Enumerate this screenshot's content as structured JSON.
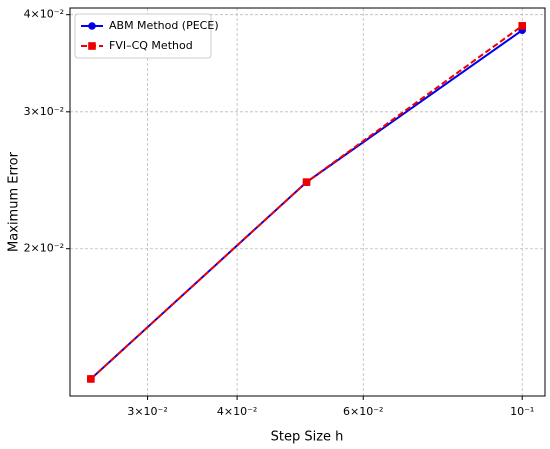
{
  "chart_data": {
    "type": "line",
    "x_label": "Step Size h",
    "y_label": "Maximum Error",
    "x": [
      0.025,
      0.05,
      0.1
    ],
    "series": [
      {
        "name": "ABM Method (PECE)",
        "color": "#0000ee",
        "marker": "circle",
        "dash": false,
        "values": [
          0.0136,
          0.02436,
          0.0382
        ]
      },
      {
        "name": "FVI–CQ Method",
        "color": "#ee0000",
        "marker": "square",
        "dash": true,
        "values": [
          0.0136,
          0.02436,
          0.0387
        ]
      }
    ],
    "xlog": true,
    "ylog": true,
    "xlim": [
      0.02338,
      0.1076
    ],
    "ylim": [
      0.01293,
      0.0408
    ],
    "xticks": [
      {
        "value": 0.03,
        "label": "3×10⁻²"
      },
      {
        "value": 0.04,
        "label": "4×10⁻²"
      },
      {
        "value": 0.06,
        "label": "6×10⁻²"
      },
      {
        "value": 0.1,
        "label": "10⁻¹"
      }
    ],
    "yticks": [
      {
        "value": 0.02,
        "label": "2×10⁻²"
      },
      {
        "value": 0.03,
        "label": "3×10⁻²"
      },
      {
        "value": 0.04,
        "label": "4×10⁻²"
      }
    ],
    "grid": true,
    "legend": "upper-left"
  }
}
